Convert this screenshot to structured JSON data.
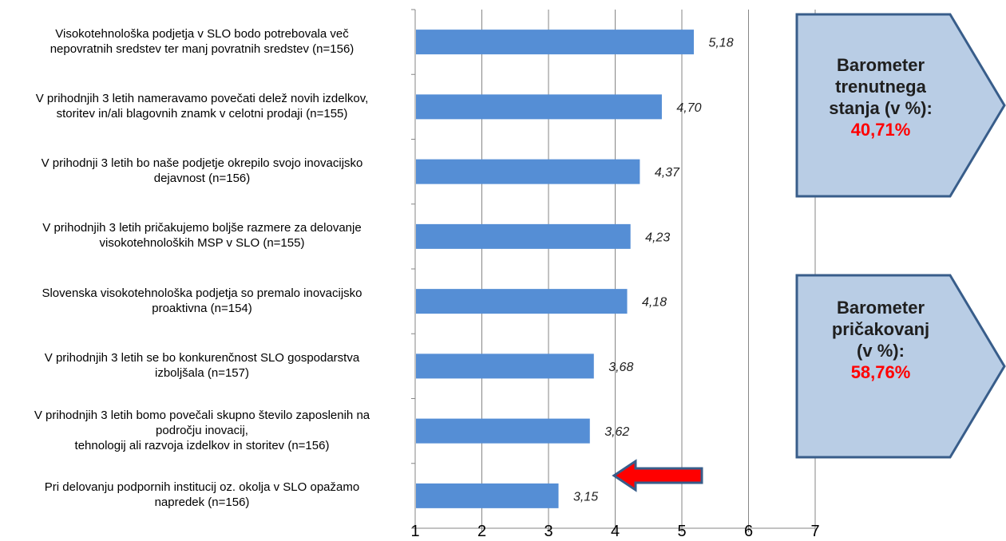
{
  "chart_data": {
    "type": "bar",
    "orientation": "horizontal",
    "categories": [
      "Visokotehnološka podjetja v SLO bodo potrebovala več\nnepovratnih sredstev ter manj povratnih sredstev (n=156)",
      "V prihodnjih 3 letih nameravamo povečati delež novih izdelkov,\nstoritev in/ali blagovnih znamk v celotni prodaji (n=155)",
      "V prihodnji 3 letih bo naše podjetje okrepilo svojo inovacijsko\ndejavnost (n=156)",
      "V prihodnjih 3 letih pričakujemo boljše razmere za delovanje\nvisokotehnoloških MSP v SLO (n=155)",
      "Slovenska visokotehnološka podjetja so premalo inovacijsko\nproaktivna (n=154)",
      "V prihodnjih 3 letih se bo konkurenčnost SLO gospodarstva\nizboljšala (n=157)",
      "V prihodnjih 3 letih bomo povečali skupno število zaposlenih  na\npodročju inovacij,\ntehnologij ali razvoja izdelkov in storitev (n=156)",
      "Pri delovanju podpornih institucij oz. okolja v SLO opažamo\nnapredek (n=156)"
    ],
    "values": [
      5.18,
      4.7,
      4.37,
      4.23,
      4.18,
      3.68,
      3.62,
      3.15
    ],
    "value_labels": [
      "5,18",
      "4,70",
      "4,37",
      "4,23",
      "4,18",
      "3,68",
      "3,62",
      "3,15"
    ],
    "xlim": [
      1,
      7
    ],
    "x_ticks": [
      "1",
      "2",
      "3",
      "4",
      "5",
      "6",
      "7"
    ],
    "grid": "vertical",
    "bar_color": "#558ED5",
    "legend": "none"
  },
  "callouts": [
    {
      "lines": [
        "Barometer",
        "trenutnega",
        "stanja (v %):"
      ],
      "value": "40,71%"
    },
    {
      "lines": [
        "Barometer",
        "pričakovanj",
        "(v %):"
      ],
      "value": "58,76%"
    }
  ],
  "colors": {
    "callout_fill": "#B9CDE5",
    "callout_border": "#385D8A",
    "arrow": "#FF0000",
    "value_text": "#FF0000"
  }
}
